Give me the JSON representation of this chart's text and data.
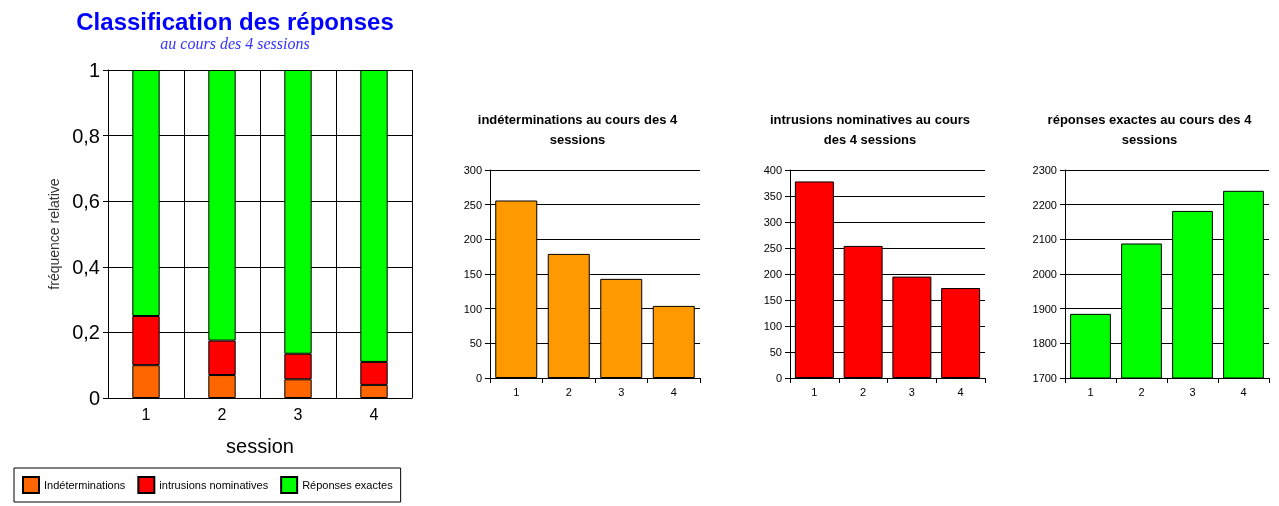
{
  "chart_data": [
    {
      "type": "bar",
      "title": "Classification des réponses",
      "subtitle": "au cours des 4 sessions",
      "xlabel": "session",
      "ylabel": "fréquence relative",
      "categories": [
        "1",
        "2",
        "3",
        "4"
      ],
      "stacked": true,
      "series": [
        {
          "name": "Indéterminations",
          "color": "#ff6600",
          "values": [
            0.1,
            0.07,
            0.057,
            0.04
          ]
        },
        {
          "name": "intrusions nominatives",
          "color": "#ff0000",
          "values": [
            0.15,
            0.105,
            0.078,
            0.07
          ]
        },
        {
          "name": "Réponses exactes",
          "color": "#00ff00",
          "values": [
            0.75,
            0.825,
            0.865,
            0.89
          ]
        }
      ],
      "ylim": [
        0,
        1
      ],
      "yticks": [
        0,
        {
          "value": 0.2,
          "label": "0,2"
        },
        {
          "value": 0.4,
          "label": "0,4"
        },
        {
          "value": 0.6,
          "label": "0,6"
        },
        {
          "value": 0.8,
          "label": "0,8"
        },
        1
      ],
      "grid": true,
      "legend": "bottom"
    },
    {
      "type": "bar",
      "title": "indéterminations au cours des 4 sessions",
      "categories": [
        "1",
        "2",
        "3",
        "4"
      ],
      "values": [
        256,
        179,
        143,
        104
      ],
      "color": "#ff9900",
      "ylim": [
        0,
        300
      ],
      "yticks": [
        0,
        50,
        100,
        150,
        200,
        250,
        300
      ],
      "grid": "y"
    },
    {
      "type": "bar",
      "title": "intrusions nominatives au cours des 4 sessions",
      "categories": [
        "1",
        "2",
        "3",
        "4"
      ],
      "values": [
        378,
        254,
        195,
        173
      ],
      "color": "#ff0000",
      "ylim": [
        0,
        400
      ],
      "yticks": [
        0,
        50,
        100,
        150,
        200,
        250,
        300,
        350,
        400
      ],
      "grid": "y"
    },
    {
      "type": "bar",
      "title": "réponses exactes au cours des 4 sessions",
      "categories": [
        "1",
        "2",
        "3",
        "4"
      ],
      "values": [
        1885,
        2088,
        2182,
        2240
      ],
      "color": "#00ff00",
      "ylim": [
        1700,
        2300
      ],
      "yticks": [
        1700,
        1800,
        1900,
        2000,
        2100,
        2200,
        2300
      ],
      "grid": "y"
    }
  ]
}
